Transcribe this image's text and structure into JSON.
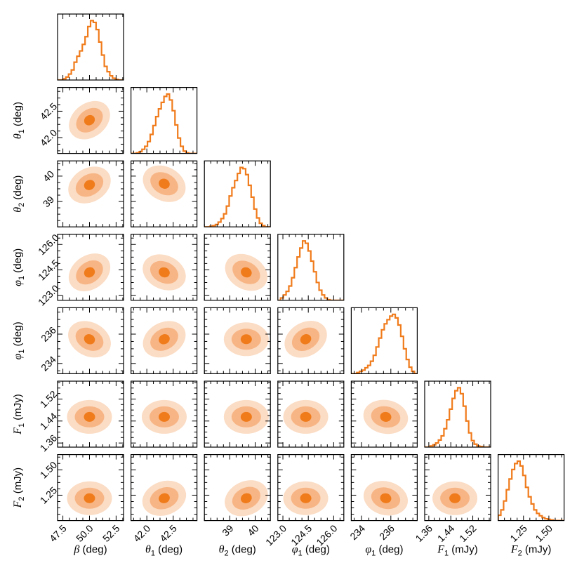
{
  "chart_data": {
    "type": "corner",
    "title": "",
    "color_line": "#f07b1b",
    "contour_colors": [
      "#fbdcc4",
      "#f7b585",
      "#f07b1b"
    ],
    "parameters": [
      {
        "symbol": "β",
        "sub": "",
        "unit": " (deg)",
        "range": [
          47.0,
          53.2
        ],
        "ticks": [
          47.5,
          50.0,
          52.5
        ],
        "tick_labels": [
          "47.5",
          "50.0",
          "52.5"
        ],
        "hist": [
          0,
          0,
          2,
          5,
          10,
          17,
          30,
          40,
          49,
          60,
          73,
          90,
          100,
          97,
          85,
          64,
          42,
          23,
          14,
          7,
          3,
          1,
          0,
          0
        ]
      },
      {
        "symbol": "θ",
        "sub": "1",
        "unit": " (deg)",
        "range": [
          41.7,
          42.95
        ],
        "ticks": [
          42.0,
          42.5
        ],
        "tick_labels": [
          "42.0",
          "42.5"
        ],
        "hist": [
          0,
          0,
          1,
          3,
          7,
          12,
          20,
          32,
          47,
          62,
          75,
          86,
          96,
          100,
          90,
          72,
          48,
          26,
          12,
          4,
          1,
          0,
          0,
          0
        ]
      },
      {
        "symbol": "θ",
        "sub": "2",
        "unit": " (deg)",
        "range": [
          38.0,
          40.6
        ],
        "ticks": [
          39,
          40
        ],
        "tick_labels": [
          "39",
          "40"
        ],
        "hist": [
          0,
          0,
          1,
          2,
          4,
          8,
          14,
          22,
          35,
          52,
          66,
          78,
          90,
          100,
          98,
          88,
          70,
          50,
          30,
          15,
          6,
          2,
          0,
          0
        ]
      },
      {
        "symbol": "φ",
        "sub": "1",
        "unit": " (deg)",
        "range": [
          122.7,
          126.6
        ],
        "ticks": [
          123.0,
          124.5,
          126.0
        ],
        "tick_labels": [
          "123.0",
          "124.5",
          "126.0"
        ],
        "hist": [
          0,
          4,
          9,
          15,
          24,
          38,
          55,
          73,
          88,
          100,
          96,
          83,
          66,
          48,
          30,
          17,
          9,
          4,
          1,
          0,
          0,
          0,
          0,
          0
        ]
      },
      {
        "symbol": "φ",
        "sub": "1",
        "unit": " (deg)",
        "range": [
          233.3,
          237.8
        ],
        "ticks": [
          234,
          236
        ],
        "tick_labels": [
          "234",
          "236"
        ],
        "hist": [
          0,
          0,
          2,
          4,
          6,
          10,
          14,
          21,
          31,
          45,
          60,
          74,
          84,
          91,
          97,
          100,
          94,
          82,
          63,
          42,
          24,
          11,
          4,
          0
        ]
      },
      {
        "symbol": "F",
        "sub": "1",
        "unit": " (mJy)",
        "range": [
          1.345,
          1.585
        ],
        "ticks": [
          1.36,
          1.44,
          1.52
        ],
        "tick_labels": [
          "1.36",
          "1.44",
          "1.52"
        ],
        "hist": [
          0,
          0,
          2,
          4,
          7,
          12,
          19,
          31,
          46,
          64,
          82,
          95,
          100,
          90,
          69,
          44,
          24,
          11,
          5,
          2,
          1,
          0,
          0,
          0
        ]
      },
      {
        "symbol": "F",
        "sub": "2",
        "unit": " (mJy)",
        "range": [
          1.0,
          1.65
        ],
        "ticks": [
          1.25,
          1.5
        ],
        "tick_labels": [
          "1.25",
          "1.50"
        ],
        "hist": [
          9,
          18,
          33,
          52,
          70,
          86,
          96,
          100,
          92,
          76,
          56,
          40,
          28,
          18,
          12,
          8,
          5,
          3,
          2,
          1,
          0,
          0,
          0,
          0
        ]
      }
    ],
    "contours": [
      {
        "row": 1,
        "col": 0,
        "center": [
          50.0,
          42.33
        ],
        "tilt_deg": -38
      },
      {
        "row": 2,
        "col": 0,
        "center": [
          50.0,
          39.65
        ],
        "tilt_deg": -30
      },
      {
        "row": 2,
        "col": 1,
        "center": [
          42.33,
          39.7
        ],
        "tilt_deg": 28
      },
      {
        "row": 3,
        "col": 0,
        "center": [
          50.0,
          124.35
        ],
        "tilt_deg": -35
      },
      {
        "row": 3,
        "col": 1,
        "center": [
          42.33,
          124.35
        ],
        "tilt_deg": 25
      },
      {
        "row": 3,
        "col": 2,
        "center": [
          39.65,
          124.35
        ],
        "tilt_deg": 30
      },
      {
        "row": 4,
        "col": 0,
        "center": [
          50.0,
          235.65
        ],
        "tilt_deg": 28
      },
      {
        "row": 4,
        "col": 1,
        "center": [
          42.33,
          235.65
        ],
        "tilt_deg": -28
      },
      {
        "row": 4,
        "col": 2,
        "center": [
          39.65,
          235.65
        ],
        "tilt_deg": 0
      },
      {
        "row": 4,
        "col": 3,
        "center": [
          124.35,
          235.65
        ],
        "tilt_deg": -30
      },
      {
        "row": 5,
        "col": 0,
        "center": [
          50.0,
          1.455
        ],
        "tilt_deg": 0
      },
      {
        "row": 5,
        "col": 1,
        "center": [
          42.33,
          1.455
        ],
        "tilt_deg": 0
      },
      {
        "row": 5,
        "col": 2,
        "center": [
          39.65,
          1.455
        ],
        "tilt_deg": 0
      },
      {
        "row": 5,
        "col": 3,
        "center": [
          124.35,
          1.455
        ],
        "tilt_deg": 0
      },
      {
        "row": 5,
        "col": 4,
        "center": [
          235.65,
          1.455
        ],
        "tilt_deg": 10
      },
      {
        "row": 6,
        "col": 0,
        "center": [
          50.0,
          1.22
        ],
        "tilt_deg": 0
      },
      {
        "row": 6,
        "col": 1,
        "center": [
          42.33,
          1.22
        ],
        "tilt_deg": -20
      },
      {
        "row": 6,
        "col": 2,
        "center": [
          39.65,
          1.22
        ],
        "tilt_deg": -25
      },
      {
        "row": 6,
        "col": 3,
        "center": [
          124.35,
          1.22
        ],
        "tilt_deg": 0
      },
      {
        "row": 6,
        "col": 4,
        "center": [
          235.65,
          1.22
        ],
        "tilt_deg": 15
      },
      {
        "row": 6,
        "col": 5,
        "center": [
          1.455,
          1.22
        ],
        "tilt_deg": 0
      }
    ]
  }
}
